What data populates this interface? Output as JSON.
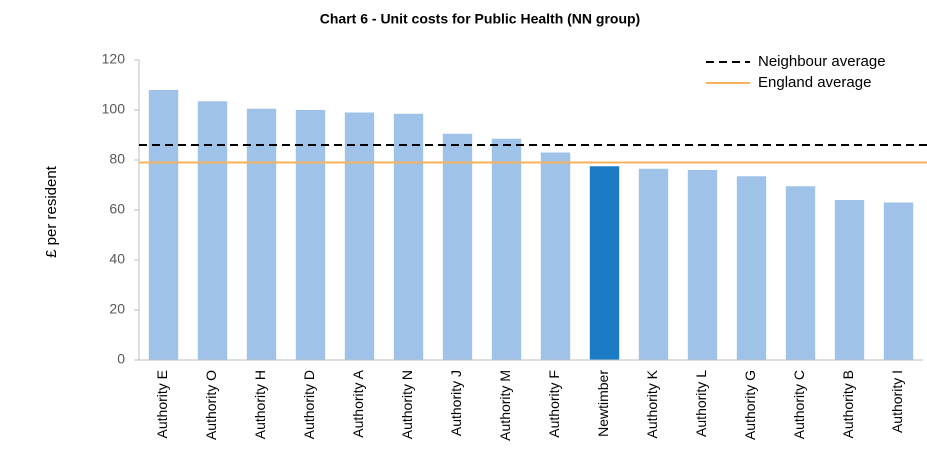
{
  "chart_data": {
    "type": "bar",
    "title": "Chart 6 - Unit costs for Public Health (NN group)",
    "y_label": "£ per resident",
    "categories": [
      "Authority E",
      "Authority O",
      "Authority H",
      "Authority D",
      "Authority A",
      "Authority N",
      "Authority J",
      "Authority M",
      "Authority F",
      "Newtimber",
      "Authority K",
      "Authority L",
      "Authority G",
      "Authority C",
      "Authority B",
      "Authority I"
    ],
    "values": [
      108,
      103.5,
      100.5,
      100,
      99,
      98.5,
      90.5,
      88.5,
      83,
      77.5,
      76.5,
      76,
      73.5,
      69.5,
      64,
      63
    ],
    "colors": [
      "#9fc2e8",
      "#9fc2e8",
      "#9fc2e8",
      "#9fc2e8",
      "#9fc2e8",
      "#9fc2e8",
      "#9fc2e8",
      "#9fc2e8",
      "#9fc2e8",
      "#1c7bc5",
      "#9fc2e8",
      "#9fc2e8",
      "#9fc2e8",
      "#9fc2e8",
      "#9fc2e8",
      "#9fc2e8"
    ],
    "reference_lines": [
      {
        "name": "Neighbour average",
        "value": 86,
        "color": "#000000",
        "dashed": true
      },
      {
        "name": "England average",
        "value": 79,
        "color": "#f7b35b",
        "dashed": false
      }
    ],
    "legend": "top-right",
    "ylim": [
      0,
      120
    ],
    "yticks": [
      0,
      20,
      40,
      60,
      80,
      100,
      120
    ],
    "grid": false
  }
}
